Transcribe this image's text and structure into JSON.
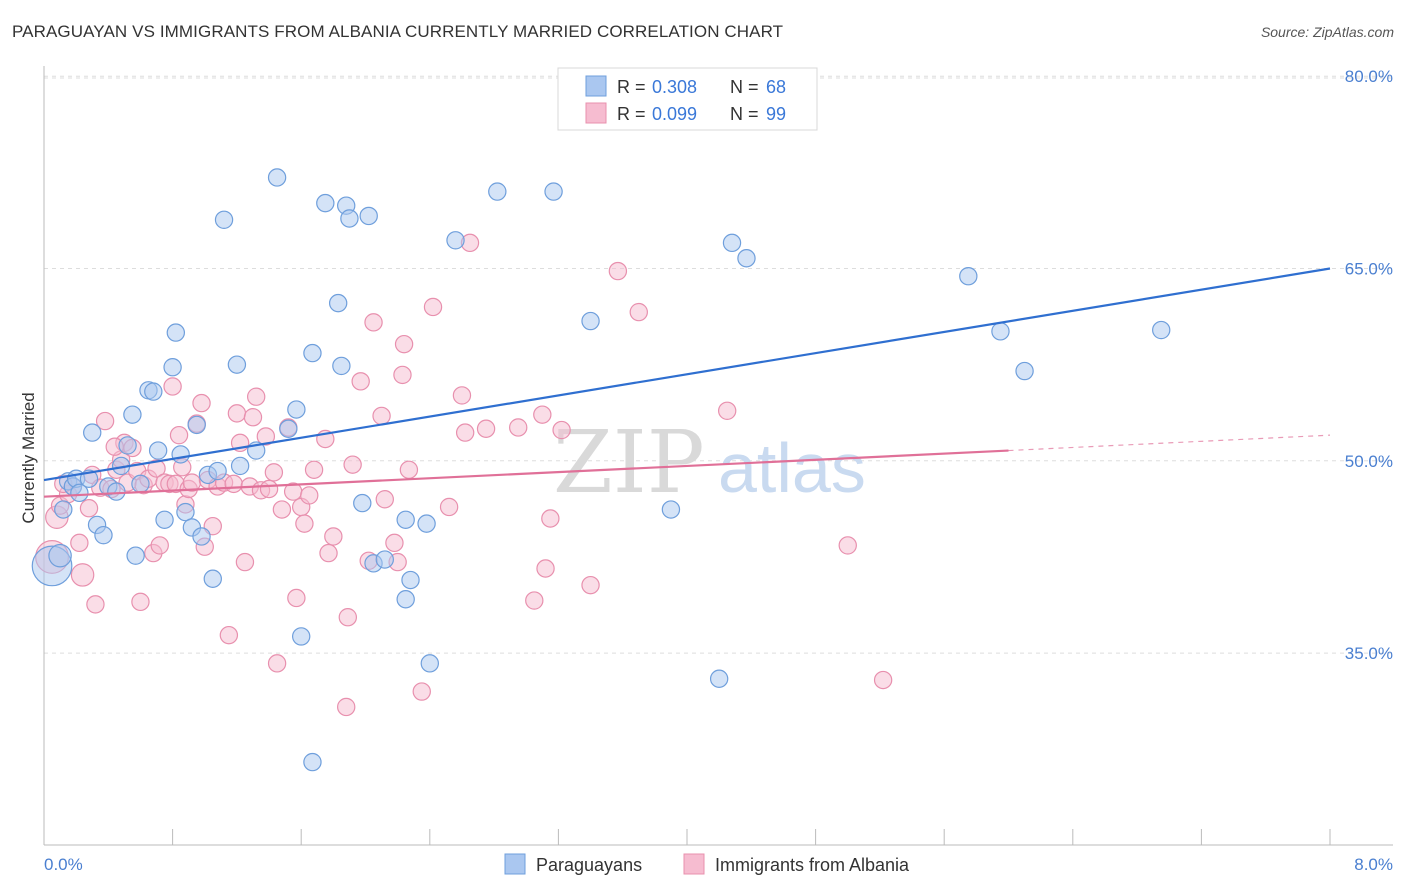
{
  "title": "PARAGUAYAN VS IMMIGRANTS FROM ALBANIA CURRENTLY MARRIED CORRELATION CHART",
  "source": "Source: ZipAtlas.com",
  "watermark": {
    "zip": "ZIP",
    "atlas": "atlas"
  },
  "colors": {
    "blue_fill": "#aac7f0",
    "blue_stroke": "#6f9fdc",
    "blue_line": "#2f6fd0",
    "pink_fill": "#f6bcd0",
    "pink_stroke": "#e890ae",
    "pink_line": "#e07098",
    "grid": "#dddddd",
    "tick_text": "#4a7fd0"
  },
  "legend": {
    "r_label": "R =",
    "n_label": "N =",
    "items": [
      {
        "r": "0.308",
        "n": "68"
      },
      {
        "r": "0.099",
        "n": "99"
      }
    ]
  },
  "chart_data": {
    "type": "scatter",
    "title": "PARAGUAYAN VS IMMIGRANTS FROM ALBANIA CURRENTLY MARRIED CORRELATION CHART",
    "xlabel": "",
    "ylabel": "Currently Married",
    "xlim": [
      0,
      8
    ],
    "ylim": [
      20,
      83
    ],
    "x_tick_labels": [
      "0.0%",
      "8.0%"
    ],
    "y_ticks": [
      35,
      50,
      65,
      80
    ],
    "y_tick_labels": [
      "35.0%",
      "50.0%",
      "65.0%",
      "80.0%"
    ],
    "grid": "horizontal dashed",
    "legend_position": "top-center",
    "series": [
      {
        "name": "Paraguayans",
        "color": "#6f9fdc",
        "trend": {
          "x": [
            0,
            8
          ],
          "y": [
            48.5,
            65.0
          ]
        },
        "points": [
          [
            0.05,
            41.8,
            2.3
          ],
          [
            0.1,
            42.6,
            1.3
          ],
          [
            0.12,
            46.2,
            1
          ],
          [
            0.15,
            48.4,
            1
          ],
          [
            0.18,
            48.0,
            1
          ],
          [
            0.2,
            48.6,
            1
          ],
          [
            0.22,
            47.5,
            1
          ],
          [
            0.28,
            48.6,
            1
          ],
          [
            0.3,
            52.2,
            1
          ],
          [
            0.33,
            45.0,
            1
          ],
          [
            0.37,
            44.2,
            1
          ],
          [
            0.4,
            48.0,
            1
          ],
          [
            0.45,
            47.6,
            1
          ],
          [
            0.48,
            49.6,
            1
          ],
          [
            0.52,
            51.2,
            1
          ],
          [
            0.55,
            53.6,
            1
          ],
          [
            0.57,
            42.6,
            1
          ],
          [
            0.6,
            48.2,
            1
          ],
          [
            0.65,
            55.5,
            1
          ],
          [
            0.68,
            55.4,
            1
          ],
          [
            0.71,
            50.8,
            1
          ],
          [
            0.75,
            45.4,
            1
          ],
          [
            0.8,
            57.3,
            1
          ],
          [
            0.82,
            60.0,
            1
          ],
          [
            0.85,
            50.5,
            1
          ],
          [
            0.88,
            46.0,
            1
          ],
          [
            0.92,
            44.8,
            1
          ],
          [
            0.95,
            52.8,
            1
          ],
          [
            0.98,
            44.1,
            1
          ],
          [
            1.02,
            48.9,
            1
          ],
          [
            1.05,
            40.8,
            1
          ],
          [
            1.08,
            49.2,
            1
          ],
          [
            1.12,
            68.8,
            1
          ],
          [
            1.2,
            57.5,
            1
          ],
          [
            1.22,
            49.6,
            1
          ],
          [
            1.32,
            50.8,
            1
          ],
          [
            1.45,
            72.1,
            1
          ],
          [
            1.52,
            52.5,
            1
          ],
          [
            1.57,
            54.0,
            1
          ],
          [
            1.6,
            36.3,
            1
          ],
          [
            1.67,
            26.5,
            1
          ],
          [
            1.67,
            58.4,
            1
          ],
          [
            1.75,
            70.1,
            1
          ],
          [
            1.83,
            62.3,
            1
          ],
          [
            1.85,
            57.4,
            1
          ],
          [
            1.88,
            69.9,
            1
          ],
          [
            1.9,
            68.9,
            1
          ],
          [
            1.98,
            46.7,
            1
          ],
          [
            2.02,
            69.1,
            1
          ],
          [
            2.05,
            42.0,
            1
          ],
          [
            2.12,
            42.3,
            1
          ],
          [
            2.25,
            39.2,
            1
          ],
          [
            2.25,
            45.4,
            1
          ],
          [
            2.28,
            40.7,
            1
          ],
          [
            2.38,
            45.1,
            1
          ],
          [
            2.4,
            34.2,
            1
          ],
          [
            2.56,
            67.2,
            1
          ],
          [
            2.82,
            71.0,
            1
          ],
          [
            3.17,
            71.0,
            1
          ],
          [
            3.4,
            60.9,
            1
          ],
          [
            3.9,
            46.2,
            1
          ],
          [
            4.2,
            33.0,
            1
          ],
          [
            4.28,
            67.0,
            1
          ],
          [
            4.37,
            65.8,
            1
          ],
          [
            5.75,
            64.4,
            1
          ],
          [
            5.95,
            60.1,
            1
          ],
          [
            6.1,
            57.0,
            1
          ],
          [
            6.95,
            60.2,
            1
          ]
        ]
      },
      {
        "name": "Immigrants from Albania",
        "color": "#e890ae",
        "trend": {
          "x": [
            0,
            6.0
          ],
          "y": [
            47.2,
            50.8
          ]
        },
        "trend_extension": {
          "x": [
            6.0,
            8
          ],
          "y": [
            50.8,
            52.0
          ]
        },
        "points": [
          [
            0.05,
            42.5,
            1.9
          ],
          [
            0.08,
            45.6,
            1.3
          ],
          [
            0.1,
            46.5,
            1
          ],
          [
            0.15,
            47.4,
            1
          ],
          [
            0.18,
            48.0,
            1
          ],
          [
            0.22,
            43.6,
            1
          ],
          [
            0.24,
            41.1,
            1.3
          ],
          [
            0.28,
            46.3,
            1
          ],
          [
            0.3,
            48.9,
            1
          ],
          [
            0.32,
            38.8,
            1
          ],
          [
            0.35,
            47.9,
            1
          ],
          [
            0.38,
            53.1,
            1
          ],
          [
            0.42,
            47.8,
            1
          ],
          [
            0.45,
            49.3,
            1
          ],
          [
            0.48,
            50.1,
            1
          ],
          [
            0.5,
            51.4,
            1
          ],
          [
            0.52,
            48.3,
            1
          ],
          [
            0.55,
            51.0,
            1
          ],
          [
            0.58,
            49.2,
            1
          ],
          [
            0.6,
            39.0,
            1
          ],
          [
            0.62,
            48.1,
            1
          ],
          [
            0.65,
            48.6,
            1
          ],
          [
            0.68,
            42.8,
            1
          ],
          [
            0.7,
            49.4,
            1
          ],
          [
            0.72,
            43.4,
            1
          ],
          [
            0.75,
            48.3,
            1
          ],
          [
            0.78,
            48.2,
            1
          ],
          [
            0.8,
            55.8,
            1
          ],
          [
            0.82,
            48.2,
            1
          ],
          [
            0.84,
            52.0,
            1
          ],
          [
            0.86,
            49.5,
            1
          ],
          [
            0.88,
            46.6,
            1
          ],
          [
            0.9,
            47.8,
            1
          ],
          [
            0.92,
            48.3,
            1
          ],
          [
            0.95,
            52.9,
            1
          ],
          [
            0.98,
            54.5,
            1
          ],
          [
            1.0,
            43.3,
            1
          ],
          [
            1.02,
            48.5,
            1
          ],
          [
            1.05,
            44.9,
            1
          ],
          [
            1.08,
            48.0,
            1
          ],
          [
            1.12,
            48.3,
            1
          ],
          [
            1.15,
            36.4,
            1
          ],
          [
            1.18,
            48.2,
            1
          ],
          [
            1.2,
            53.7,
            1
          ],
          [
            1.22,
            51.4,
            1
          ],
          [
            1.25,
            42.1,
            1
          ],
          [
            1.28,
            48.0,
            1
          ],
          [
            1.3,
            53.4,
            1
          ],
          [
            1.32,
            55.0,
            1
          ],
          [
            1.35,
            47.7,
            1
          ],
          [
            1.38,
            51.9,
            1
          ],
          [
            1.4,
            47.8,
            1
          ],
          [
            1.43,
            49.1,
            1
          ],
          [
            1.45,
            34.2,
            1
          ],
          [
            1.48,
            46.2,
            1
          ],
          [
            1.52,
            52.6,
            1
          ],
          [
            1.55,
            47.6,
            1
          ],
          [
            1.57,
            39.3,
            1
          ],
          [
            1.6,
            46.4,
            1
          ],
          [
            1.62,
            45.1,
            1
          ],
          [
            1.65,
            47.3,
            1
          ],
          [
            1.68,
            49.3,
            1
          ],
          [
            1.75,
            51.7,
            1
          ],
          [
            1.77,
            42.8,
            1
          ],
          [
            1.8,
            44.1,
            1
          ],
          [
            1.88,
            30.8,
            1
          ],
          [
            1.89,
            37.8,
            1
          ],
          [
            1.92,
            49.7,
            1
          ],
          [
            1.97,
            56.2,
            1
          ],
          [
            2.02,
            42.2,
            1
          ],
          [
            2.05,
            60.8,
            1
          ],
          [
            2.1,
            53.5,
            1
          ],
          [
            2.12,
            47.0,
            1
          ],
          [
            2.18,
            43.6,
            1
          ],
          [
            2.2,
            42.1,
            1
          ],
          [
            2.23,
            56.7,
            1
          ],
          [
            2.24,
            59.1,
            1
          ],
          [
            2.27,
            49.3,
            1
          ],
          [
            2.35,
            32.0,
            1
          ],
          [
            2.42,
            62.0,
            1
          ],
          [
            2.52,
            46.4,
            1
          ],
          [
            2.6,
            55.1,
            1
          ],
          [
            2.62,
            52.2,
            1
          ],
          [
            2.65,
            67.0,
            1
          ],
          [
            2.75,
            52.5,
            1
          ],
          [
            2.95,
            52.6,
            1
          ],
          [
            3.05,
            39.1,
            1
          ],
          [
            3.1,
            53.6,
            1
          ],
          [
            3.12,
            41.6,
            1
          ],
          [
            3.15,
            45.5,
            1
          ],
          [
            3.22,
            52.4,
            1
          ],
          [
            3.4,
            40.3,
            1
          ],
          [
            3.57,
            64.8,
            1
          ],
          [
            3.7,
            61.6,
            1
          ],
          [
            4.25,
            53.9,
            1
          ],
          [
            5.0,
            43.4,
            1
          ],
          [
            5.22,
            32.9,
            1
          ],
          [
            0.12,
            48.2,
            1
          ],
          [
            0.44,
            51.1,
            1
          ]
        ]
      }
    ]
  },
  "bottom_legend": [
    {
      "label": "Paraguayans"
    },
    {
      "label": "Immigrants from Albania"
    }
  ]
}
